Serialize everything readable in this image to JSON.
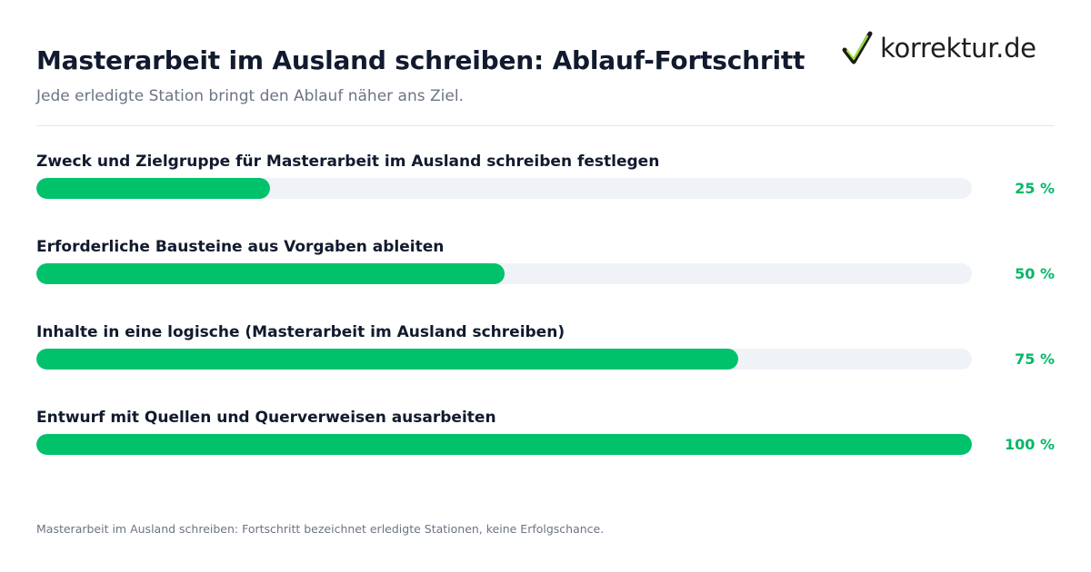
{
  "header": {
    "title": "Masterarbeit im Ausland schreiben: Ablauf-Fortschritt",
    "subtitle": "Jede erledigte Station bringt den Ablauf näher ans Ziel."
  },
  "logo": {
    "text": "korrektur.de",
    "icon": "checkmark-icon",
    "check_color": "#1b1b1b",
    "check_accent": "#9be22d"
  },
  "chart_data": {
    "type": "bar",
    "orientation": "horizontal",
    "title": "Masterarbeit im Ausland schreiben: Ablauf-Fortschritt",
    "subtitle": "Jede erledigte Station bringt den Ablauf näher ans Ziel.",
    "categories": [
      "Zweck und Zielgruppe für Masterarbeit im Ausland schreiben festlegen",
      "Erforderliche Bausteine aus Vorgaben ableiten",
      "Inhalte in eine logische (Masterarbeit im Ausland schreiben)",
      "Entwurf mit Quellen und Querverweisen ausarbeiten"
    ],
    "values": [
      25,
      50,
      75,
      100
    ],
    "value_labels": [
      "25 %",
      "50 %",
      "75 %",
      "100 %"
    ],
    "xlim": [
      0,
      100
    ],
    "unit": "%",
    "grid": false,
    "legend": "none",
    "colors": {
      "fill": "#00c26b",
      "track": "#eff3f8",
      "value_text": "#00b865"
    }
  },
  "footnote": "Masterarbeit im Ausland schreiben: Fortschritt bezeichnet erledigte Stationen, keine Erfolgschance."
}
